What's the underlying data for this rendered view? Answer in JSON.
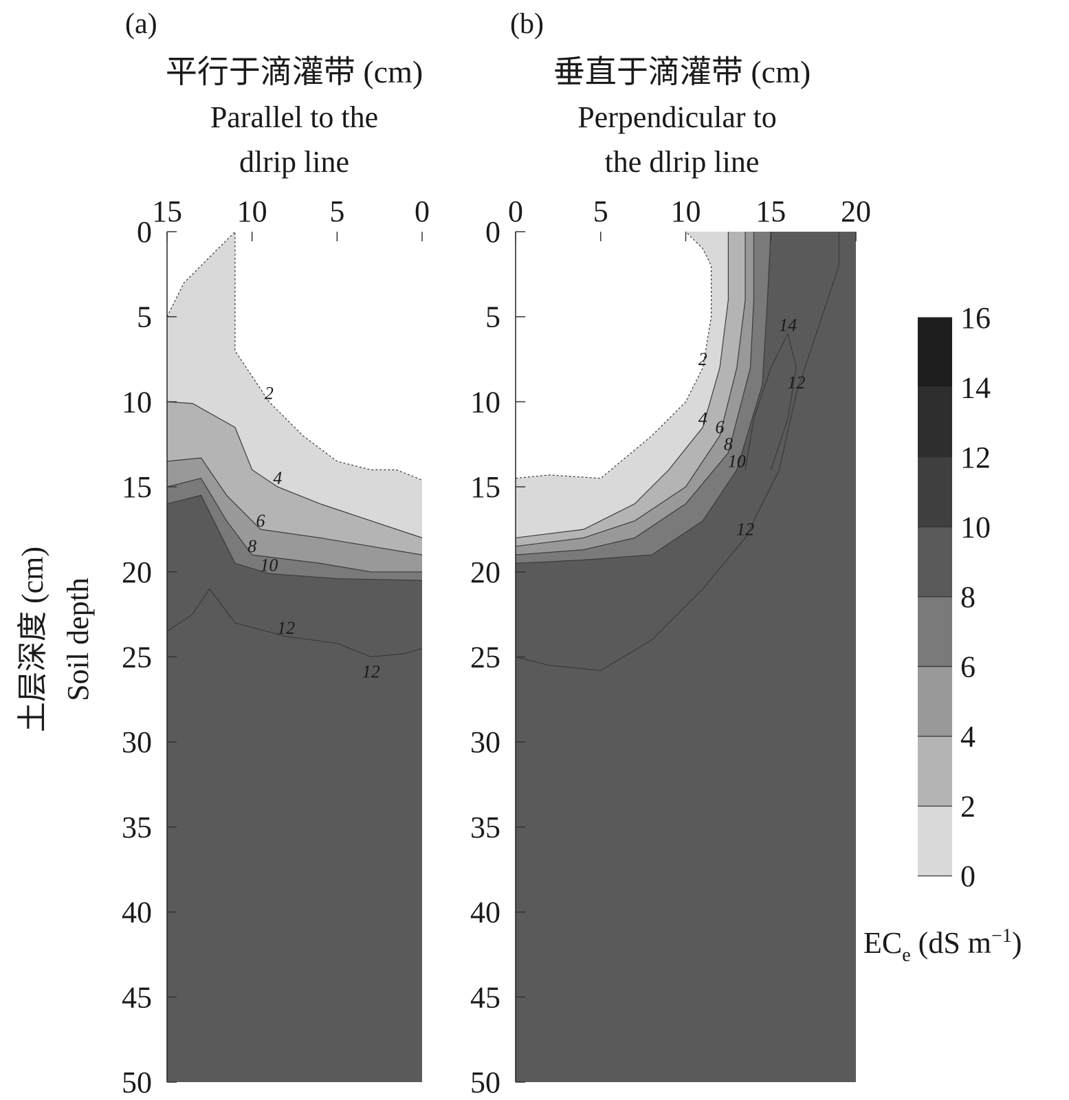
{
  "chart_data": [
    {
      "type": "contour",
      "panel": "(a)",
      "title_cn": "平行于滴灌带 (cm)",
      "title_en_lines": [
        "Parallel to the",
        "dlrip line"
      ],
      "xticks": [
        15,
        10,
        5,
        0
      ],
      "xlim": [
        15,
        0
      ],
      "yticks": [
        0,
        5,
        10,
        15,
        20,
        25,
        30,
        35,
        40,
        45,
        50
      ],
      "ylim": [
        0,
        50
      ],
      "contour_labels": [
        "2",
        "4",
        "6",
        "8",
        "10",
        "12",
        "12"
      ],
      "iso_lines": [
        {
          "level": 2,
          "points": [
            [
              15,
              5
            ],
            [
              14,
              3
            ],
            [
              12,
              1
            ],
            [
              11,
              0
            ],
            [
              11,
              4
            ],
            [
              11,
              7
            ],
            [
              9,
              10
            ],
            [
              7,
              12
            ],
            [
              5,
              13.5
            ],
            [
              3,
              14
            ],
            [
              1.5,
              14
            ],
            [
              0,
              14.6
            ]
          ]
        },
        {
          "level": 4,
          "points": [
            [
              15,
              10
            ],
            [
              13.5,
              10.1
            ],
            [
              11,
              11.5
            ],
            [
              10,
              14
            ],
            [
              8.5,
              15
            ],
            [
              6,
              16
            ],
            [
              3,
              17
            ],
            [
              0,
              18
            ]
          ]
        },
        {
          "level": 6,
          "points": [
            [
              15,
              13.5
            ],
            [
              13,
              13.3
            ],
            [
              11.5,
              15.5
            ],
            [
              9.5,
              17.5
            ],
            [
              6,
              18
            ],
            [
              3,
              18.5
            ],
            [
              0,
              19
            ]
          ]
        },
        {
          "level": 8,
          "points": [
            [
              15,
              15
            ],
            [
              13,
              14.5
            ],
            [
              11.5,
              17
            ],
            [
              10,
              19
            ],
            [
              6,
              19.5
            ],
            [
              3,
              20
            ],
            [
              0,
              20
            ]
          ]
        },
        {
          "level": 10,
          "points": [
            [
              15,
              16
            ],
            [
              13,
              15.5
            ],
            [
              11,
              19.5
            ],
            [
              9,
              20.1
            ],
            [
              5,
              20.4
            ],
            [
              0,
              20.5
            ]
          ]
        },
        {
          "level": 12,
          "points": [
            [
              15,
              23.5
            ],
            [
              13.5,
              22.5
            ],
            [
              12.5,
              21
            ],
            [
              11,
              23
            ],
            [
              8,
              23.8
            ],
            [
              5,
              24.2
            ],
            [
              3,
              25
            ],
            [
              1,
              24.8
            ],
            [
              0,
              24.5
            ]
          ]
        }
      ]
    },
    {
      "type": "contour",
      "panel": "(b)",
      "title_cn": "垂直于滴灌带 (cm)",
      "title_en_lines": [
        "Perpendicular to",
        "the dlrip line"
      ],
      "xticks": [
        0,
        5,
        10,
        15,
        20
      ],
      "xlim": [
        0,
        20
      ],
      "yticks": [
        0,
        5,
        10,
        15,
        20,
        25,
        30,
        35,
        40,
        45,
        50
      ],
      "ylim": [
        0,
        50
      ],
      "contour_labels": [
        "2",
        "4",
        "6",
        "8",
        "10",
        "12",
        "14",
        "12"
      ],
      "iso_lines": [
        {
          "level": 2,
          "points": [
            [
              0,
              14.5
            ],
            [
              2,
              14.3
            ],
            [
              5,
              14.5
            ],
            [
              8,
              12
            ],
            [
              10,
              10
            ],
            [
              11,
              8
            ],
            [
              11.5,
              5
            ],
            [
              11.5,
              2
            ],
            [
              11,
              1
            ],
            [
              10,
              0
            ]
          ]
        },
        {
          "level": 4,
          "points": [
            [
              0,
              18
            ],
            [
              4,
              17.5
            ],
            [
              7,
              16
            ],
            [
              9,
              14
            ],
            [
              11,
              11.5
            ],
            [
              12,
              8
            ],
            [
              12.5,
              4
            ],
            [
              12.5,
              0
            ]
          ]
        },
        {
          "level": 6,
          "points": [
            [
              0,
              18.5
            ],
            [
              4,
              18
            ],
            [
              7,
              17
            ],
            [
              10,
              15
            ],
            [
              12,
              12
            ],
            [
              13,
              8
            ],
            [
              13.5,
              4
            ],
            [
              13.5,
              0
            ]
          ]
        },
        {
          "level": 8,
          "points": [
            [
              0,
              19
            ],
            [
              4,
              18.7
            ],
            [
              7,
              18
            ],
            [
              10,
              16
            ],
            [
              12.5,
              13
            ],
            [
              13.8,
              8
            ],
            [
              14,
              4
            ],
            [
              14,
              0
            ]
          ]
        },
        {
          "level": 10,
          "points": [
            [
              0,
              19.5
            ],
            [
              4,
              19.3
            ],
            [
              8,
              19
            ],
            [
              11,
              17
            ],
            [
              13,
              14
            ],
            [
              14.5,
              9
            ],
            [
              14.8,
              4
            ],
            [
              15,
              0
            ]
          ]
        },
        {
          "level": 12,
          "points": [
            [
              0,
              25
            ],
            [
              2,
              25.5
            ],
            [
              5,
              25.8
            ],
            [
              8,
              24
            ],
            [
              11,
              21
            ],
            [
              13.5,
              18
            ],
            [
              15.5,
              14
            ],
            [
              16.5,
              9.5
            ],
            [
              18,
              5
            ],
            [
              19,
              2
            ],
            [
              19,
              0
            ]
          ]
        },
        {
          "level": 14,
          "points": [
            [
              13.5,
              14
            ],
            [
              14,
              11
            ],
            [
              15,
              8
            ],
            [
              16,
              6
            ],
            [
              16.5,
              8
            ],
            [
              16,
              11
            ],
            [
              15,
              14
            ]
          ]
        }
      ]
    }
  ],
  "colorbar": {
    "ticks": [
      "0",
      "2",
      "4",
      "6",
      "8",
      "10",
      "12",
      "14",
      "16"
    ],
    "label": "EC",
    "label_sub": "e",
    "label_unit_pre": " (dS m",
    "label_sup": "−1",
    "label_unit_post": ")",
    "colors": [
      "#ffffff",
      "#d9d9d9",
      "#b4b4b4",
      "#999999",
      "#7a7a7a",
      "#5a5a5a",
      "#404040",
      "#2e2e2e",
      "#1e1e1e"
    ]
  },
  "ylabel_cn": "土层深度 (cm)",
  "ylabel_en": "Soil depth"
}
